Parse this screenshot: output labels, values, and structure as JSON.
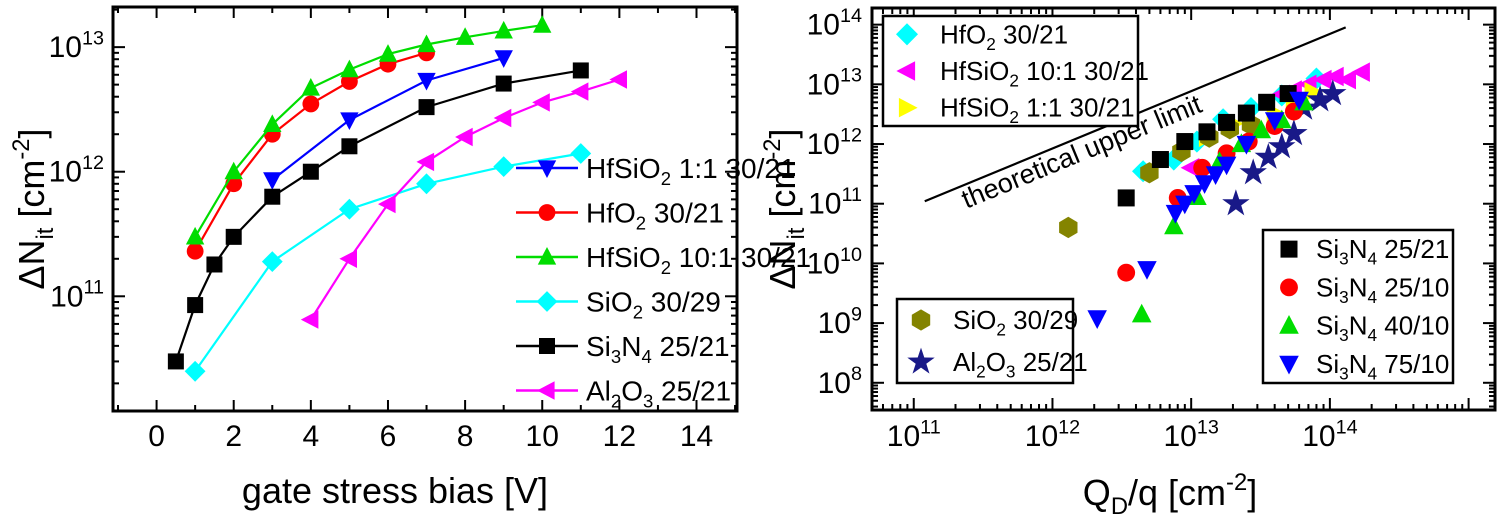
{
  "figure": {
    "background": "#ffffff",
    "frame_color": "#000000"
  },
  "chart_data": [
    {
      "id": "left",
      "type": "line",
      "xlabel": "gate stress bias [V]",
      "ylabel": "ΔN_{it} [cm^{-2}]",
      "x_scale": "linear",
      "y_scale": "log",
      "xlim": [
        -1.13,
        15.05
      ],
      "ylim": [
        12000000000.0,
        21000000000000.0
      ],
      "x_ticks": {
        "major": [
          0,
          2,
          4,
          6,
          8,
          10,
          12,
          14
        ],
        "minor": [
          -1,
          1,
          3,
          5,
          7,
          9,
          11,
          13,
          15
        ],
        "labels": [
          "0",
          "2",
          "4",
          "6",
          "8",
          "10",
          "12",
          "14"
        ]
      },
      "y_ticks": {
        "major_decades": [
          11,
          12,
          13
        ],
        "labels": [
          "10^{11}",
          "10^{12}",
          "10^{13}"
        ]
      },
      "grid": false,
      "legend": {
        "boxed": false,
        "position": "right-middle",
        "order": [
          "HfSiO_{2} 1:1 30/21",
          "HfO_{2} 30/21",
          "HfSiO_{2} 10:1 30/21",
          "SiO_{2} 30/29",
          "Si_{3}N_{4} 25/21",
          "Al_{2}O_{3} 25/21"
        ]
      },
      "series": [
        {
          "name": "HfSiO_{2} 1:1 30/21",
          "color": "#0000ff",
          "marker": "triangle-down",
          "x": [
            3,
            5,
            7,
            9
          ],
          "y": [
            860000000000.0,
            2600000000000.0,
            5400000000000.0,
            8200000000000.0
          ]
        },
        {
          "name": "HfO_{2} 30/21",
          "color": "#ff0000",
          "marker": "circle",
          "x": [
            1,
            2,
            3,
            4,
            5,
            6,
            7
          ],
          "y": [
            230000000000.0,
            800000000000.0,
            2000000000000.0,
            3500000000000.0,
            5300000000000.0,
            7300000000000.0,
            9000000000000.0
          ]
        },
        {
          "name": "HfSiO_{2} 10:1 30/21",
          "color": "#00dd00",
          "marker": "triangle-up",
          "x": [
            1,
            2,
            3,
            4,
            5,
            6,
            7,
            8,
            9,
            10
          ],
          "y": [
            300000000000.0,
            1000000000000.0,
            2400000000000.0,
            4700000000000.0,
            6600000000000.0,
            8800000000000.0,
            10500000000000.0,
            12000000000000.0,
            13500000000000.0,
            15000000000000.0
          ]
        },
        {
          "name": "SiO_{2} 30/29",
          "color": "#00ffff",
          "marker": "diamond",
          "x": [
            1,
            3,
            5,
            7,
            9,
            11
          ],
          "y": [
            25000000000.0,
            190000000000.0,
            500000000000.0,
            800000000000.0,
            1100000000000.0,
            1400000000000.0
          ]
        },
        {
          "name": "Si_{3}N_{4} 25/21",
          "color": "#000000",
          "marker": "square",
          "x": [
            0.5,
            1,
            1.5,
            2,
            3,
            4,
            5,
            7,
            9,
            11
          ],
          "y": [
            30000000000.0,
            85000000000.0,
            180000000000.0,
            300000000000.0,
            630000000000.0,
            1000000000000.0,
            1600000000000.0,
            3300000000000.0,
            5100000000000.0,
            6500000000000.0
          ]
        },
        {
          "name": "Al_{2}O_{3} 25/21",
          "color": "#ff00ff",
          "marker": "triangle-left",
          "x": [
            4,
            5,
            6,
            7,
            8,
            9,
            10,
            11,
            12
          ],
          "y": [
            65000000000.0,
            200000000000.0,
            550000000000.0,
            1200000000000.0,
            1900000000000.0,
            2700000000000.0,
            3600000000000.0,
            4400000000000.0,
            5500000000000.0
          ]
        }
      ]
    },
    {
      "id": "right",
      "type": "scatter",
      "xlabel": "Q_{D}/q [cm^{-2}]",
      "ylabel": "ΔN_{it} [cm^{-2}]",
      "x_scale": "log",
      "y_scale": "log",
      "xlim": [
        50000000000.0,
        1550000000000000.0
      ],
      "ylim": [
        35000000.0,
        190000000000000.0
      ],
      "x_ticks": {
        "major_decades": [
          11,
          12,
          13,
          14,
          15
        ],
        "labeled_decades": [
          11,
          12,
          13,
          14
        ],
        "labels": [
          "10^{11}",
          "10^{12}",
          "10^{13}",
          "10^{14}"
        ]
      },
      "y_ticks": {
        "major_decades": [
          8,
          9,
          10,
          11,
          12,
          13,
          14
        ],
        "labels": [
          "10^{8}",
          "10^{9}",
          "10^{10}",
          "10^{11}",
          "10^{12}",
          "10^{13}",
          "10^{14}"
        ]
      },
      "grid": false,
      "annotation_line": {
        "label": "theoretical upper limit",
        "x": [
          120000000000.0,
          130000000000000.0
        ],
        "y": [
          110000000000.0,
          90000000000000.0
        ],
        "color": "#000000"
      },
      "legend_boxes": [
        {
          "position": "top-left",
          "entries": [
            "HfO_{2} 30/21",
            "HfSiO_{2} 10:1 30/21",
            "HfSiO_{2} 1:1 30/21"
          ]
        },
        {
          "position": "bottom-left",
          "entries": [
            "SiO_{2} 30/29",
            "Al_{2}O_{3} 25/21"
          ]
        },
        {
          "position": "bottom-right",
          "entries": [
            "Si_{3}N_{4} 25/21",
            "Si_{3}N_{4} 25/10",
            "Si_{3}N_{4} 40/10",
            "Si_{3}N_{4} 75/10"
          ]
        }
      ],
      "series": [
        {
          "name": "HfO_{2} 30/21",
          "color": "#00ffff",
          "marker": "diamond",
          "points": [
            [
              4500000000000.0,
              350000000000.0
            ],
            [
              7500000000000.0,
              550000000000.0
            ],
            [
              11000000000000.0,
              1100000000000.0
            ],
            [
              17000000000000.0,
              2600000000000.0
            ],
            [
              27000000000000.0,
              4000000000000.0
            ],
            [
              45000000000000.0,
              6500000000000.0
            ],
            [
              80000000000000.0,
              12500000000000.0
            ]
          ]
        },
        {
          "name": "HfSiO_{2} 10:1 30/21",
          "color": "#ff00ff",
          "marker": "triangle-left",
          "points": [
            [
              10000000000000.0,
              400000000000.0
            ],
            [
              45000000000000.0,
              6800000000000.0
            ],
            [
              55000000000000.0,
              8000000000000.0
            ],
            [
              70000000000000.0,
              10000000000000.0
            ],
            [
              90000000000000.0,
              12000000000000.0
            ],
            [
              110000000000000.0,
              13500000000000.0
            ],
            [
              135000000000000.0,
              12000000000000.0
            ],
            [
              170000000000000.0,
              16000000000000.0
            ]
          ]
        },
        {
          "name": "HfSiO_{2} 1:1 30/21",
          "color": "#ffff00",
          "marker": "triangle-right",
          "points": [
            [
              13000000000000.0,
              1300000000000.0
            ],
            [
              20000000000000.0,
              2200000000000.0
            ],
            [
              40000000000000.0,
              3300000000000.0
            ],
            [
              55000000000000.0,
              4500000000000.0
            ],
            [
              75000000000000.0,
              7500000000000.0
            ]
          ]
        },
        {
          "name": "SiO_{2} 30/29",
          "color": "#848400",
          "marker": "hexagon",
          "points": [
            [
              1300000000000.0,
              40000000000.0
            ],
            [
              5000000000000.0,
              330000000000.0
            ],
            [
              8500000000000.0,
              750000000000.0
            ],
            [
              13500000000000.0,
              1300000000000.0
            ],
            [
              19000000000000.0,
              1800000000000.0
            ],
            [
              27000000000000.0,
              2100000000000.0
            ]
          ]
        },
        {
          "name": "Al_{2}O_{3} 25/21",
          "color": "#191988",
          "marker": "star",
          "points": [
            [
              21000000000000.0,
              100000000000.0
            ],
            [
              28000000000000.0,
              330000000000.0
            ],
            [
              36000000000000.0,
              600000000000.0
            ],
            [
              45000000000000.0,
              900000000000.0
            ],
            [
              55000000000000.0,
              1500000000000.0
            ],
            [
              65000000000000.0,
              4000000000000.0
            ],
            [
              85000000000000.0,
              5500000000000.0
            ],
            [
              105000000000000.0,
              7000000000000.0
            ]
          ]
        },
        {
          "name": "Si_{3}N_{4} 25/21",
          "color": "#000000",
          "marker": "square",
          "points": [
            [
              3400000000000.0,
              125000000000.0
            ],
            [
              6000000000000.0,
              550000000000.0
            ],
            [
              9000000000000.0,
              1100000000000.0
            ],
            [
              13000000000000.0,
              1600000000000.0
            ],
            [
              18000000000000.0,
              2300000000000.0
            ],
            [
              25000000000000.0,
              3300000000000.0
            ],
            [
              35000000000000.0,
              5000000000000.0
            ],
            [
              50000000000000.0,
              7000000000000.0
            ]
          ]
        },
        {
          "name": "Si_{3}N_{4} 25/10",
          "color": "#ff0000",
          "marker": "circle",
          "points": [
            [
              3400000000000.0,
              7000000000.0
            ],
            [
              8000000000000.0,
              125000000000.0
            ],
            [
              12000000000000.0,
              400000000000.0
            ],
            [
              18000000000000.0,
              700000000000.0
            ],
            [
              26000000000000.0,
              1100000000000.0
            ],
            [
              40000000000000.0,
              2000000000000.0
            ],
            [
              55000000000000.0,
              3500000000000.0
            ]
          ]
        },
        {
          "name": "Si_{3}N_{4} 40/10",
          "color": "#00dd00",
          "marker": "triangle-up",
          "points": [
            [
              4400000000000.0,
              1400000000.0
            ],
            [
              7500000000000.0,
              42000000000.0
            ],
            [
              11000000000000.0,
              130000000000.0
            ],
            [
              16000000000000.0,
              500000000000.0
            ],
            [
              23000000000000.0,
              1000000000000.0
            ],
            [
              32000000000000.0,
              1700000000000.0
            ],
            [
              45000000000000.0,
              2500000000000.0
            ],
            [
              65000000000000.0,
              5000000000000.0
            ]
          ]
        },
        {
          "name": "Si_{3}N_{4} 75/10",
          "color": "#0000ff",
          "marker": "triangle-down",
          "points": [
            [
              2100000000000.0,
              1200000000.0
            ],
            [
              4800000000000.0,
              8000000000.0
            ],
            [
              7700000000000.0,
              70000000000.0
            ],
            [
              9000000000000.0,
              100000000000.0
            ],
            [
              10500000000000.0,
              150000000000.0
            ],
            [
              12500000000000.0,
              220000000000.0
            ],
            [
              15000000000000.0,
              310000000000.0
            ],
            [
              18000000000000.0,
              450000000000.0
            ],
            [
              25000000000000.0,
              1000000000000.0
            ],
            [
              40000000000000.0,
              2500000000000.0
            ],
            [
              60000000000000.0,
              5500000000000.0
            ]
          ]
        }
      ]
    }
  ]
}
